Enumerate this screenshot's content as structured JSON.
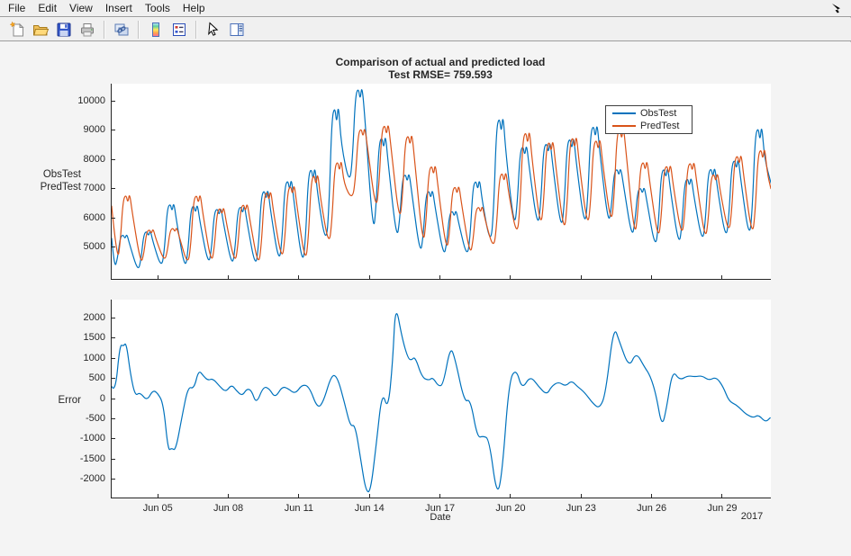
{
  "menubar": {
    "items": [
      "File",
      "Edit",
      "View",
      "Insert",
      "Tools",
      "Help"
    ]
  },
  "toolbar": {
    "icons": [
      "new-figure-icon",
      "open-icon",
      "save-icon",
      "print-icon",
      "link-axes-icon",
      "colorbar-icon",
      "legend-toggle-icon",
      "pointer-icon",
      "plot-browser-icon"
    ]
  },
  "figure": {
    "title": "Comparison of actual and predicted load",
    "subtitle": "Test RMSE= 759.593",
    "xlabel": "Date",
    "year_label": "2017",
    "colors": {
      "axis": "#262626",
      "plot_background": "#ffffff",
      "figure_background": "#f4f4f4",
      "obs_line": "#0072BD",
      "pred_line": "#D95319"
    }
  },
  "chart_data": [
    {
      "type": "line",
      "title": "Comparison of actual and predicted load",
      "subtitle": "Test RMSE= 759.593",
      "ylabel_lines": [
        "ObsTest",
        "PredTest"
      ],
      "legend": [
        "ObsTest",
        "PredTest"
      ],
      "legend_position": "upper-right",
      "x_unit": "days since Jun 03, 2017",
      "xlim": [
        0,
        28.03
      ],
      "ylim": [
        3915,
        10585
      ],
      "y_ticks": [
        5000,
        6000,
        7000,
        8000,
        9000,
        10000
      ],
      "x_ticks": [
        {
          "day": 2,
          "label": "Jun 05"
        },
        {
          "day": 5,
          "label": "Jun 08"
        },
        {
          "day": 8,
          "label": "Jun 11"
        },
        {
          "day": 11,
          "label": "Jun 14"
        },
        {
          "day": 14,
          "label": "Jun 17"
        },
        {
          "day": 17,
          "label": "Jun 20"
        },
        {
          "day": 20,
          "label": "Jun 23"
        },
        {
          "day": 23,
          "label": "Jun 26"
        },
        {
          "day": 26,
          "label": "Jun 29"
        }
      ],
      "series": [
        {
          "name": "ObsTest",
          "color": "#0072BD",
          "start": 5300,
          "end": 7200,
          "trough_time": 0.12,
          "peak_time": 0.62,
          "daily_trough": [
            4250,
            4150,
            4250,
            4200,
            4350,
            4300,
            4250,
            4400,
            4300,
            5000,
            7100,
            5380,
            5220,
            4700,
            4650,
            4600,
            5000,
            5600,
            5600,
            5500,
            5600,
            5750,
            5300,
            4900,
            5000,
            5100,
            5200,
            5200
          ],
          "daily_peak": [
            5470,
            5600,
            6570,
            6520,
            6400,
            6480,
            7050,
            7400,
            7820,
            9970,
            10560,
            8900,
            7590,
            7020,
            6300,
            7380,
            9600,
            8570,
            8680,
            8850,
            9300,
            7750,
            7100,
            7800,
            7450,
            7800,
            8100,
            9240
          ]
        },
        {
          "name": "PredTest",
          "color": "#D95319",
          "start": 6400,
          "end": 7000,
          "trough_time": 0.24,
          "peak_time": 0.74,
          "daily_trough": [
            4450,
            4400,
            4500,
            4350,
            4400,
            4400,
            4300,
            4500,
            4400,
            5000,
            6600,
            6200,
            5800,
            5000,
            4800,
            4700,
            4900,
            5300,
            5600,
            5400,
            5600,
            5700,
            5300,
            5200,
            5300,
            5200,
            5400,
            5300
          ],
          "daily_peak": [
            6880,
            5650,
            5700,
            6880,
            6420,
            6550,
            7000,
            7200,
            7600,
            8050,
            9150,
            9300,
            8950,
            7900,
            7170,
            6450,
            7650,
            9090,
            8730,
            8900,
            8800,
            9200,
            8030,
            7900,
            8000,
            7600,
            8250,
            8470
          ]
        }
      ]
    },
    {
      "type": "line",
      "ylabel": "Error",
      "xlabel": "Date",
      "year_label": "2017",
      "xlim": [
        0,
        28.03
      ],
      "ylim": [
        -2460,
        2460
      ],
      "y_ticks": [
        2000,
        1500,
        1000,
        500,
        0,
        -500,
        -1000,
        -1500,
        -2000
      ],
      "x_ticks": [
        {
          "day": 2,
          "label": "Jun 05"
        },
        {
          "day": 5,
          "label": "Jun 08"
        },
        {
          "day": 8,
          "label": "Jun 11"
        },
        {
          "day": 11,
          "label": "Jun 14"
        },
        {
          "day": 14,
          "label": "Jun 17"
        },
        {
          "day": 17,
          "label": "Jun 20"
        },
        {
          "day": 20,
          "label": "Jun 23"
        },
        {
          "day": 23,
          "label": "Jun 26"
        },
        {
          "day": 26,
          "label": "Jun 29"
        }
      ],
      "series": [
        {
          "name": "Error",
          "color": "#0072BD",
          "points": [
            [
              0,
              300
            ],
            [
              0.15,
              120
            ],
            [
              0.35,
              1350
            ],
            [
              0.5,
              1300
            ],
            [
              0.62,
              1400
            ],
            [
              0.8,
              600
            ],
            [
              1.0,
              60
            ],
            [
              1.2,
              160
            ],
            [
              1.5,
              -60
            ],
            [
              1.75,
              210
            ],
            [
              1.95,
              140
            ],
            [
              2.2,
              -120
            ],
            [
              2.4,
              -1300
            ],
            [
              2.55,
              -1230
            ],
            [
              2.72,
              -1300
            ],
            [
              3.0,
              -420
            ],
            [
              3.25,
              300
            ],
            [
              3.5,
              240
            ],
            [
              3.7,
              714
            ],
            [
              3.9,
              560
            ],
            [
              4.1,
              450
            ],
            [
              4.3,
              500
            ],
            [
              4.6,
              300
            ],
            [
              4.85,
              160
            ],
            [
              5.1,
              350
            ],
            [
              5.3,
              200
            ],
            [
              5.55,
              60
            ],
            [
              5.75,
              250
            ],
            [
              5.95,
              200
            ],
            [
              6.15,
              -140
            ],
            [
              6.45,
              300
            ],
            [
              6.7,
              250
            ],
            [
              6.95,
              10
            ],
            [
              7.25,
              300
            ],
            [
              7.5,
              250
            ],
            [
              7.8,
              110
            ],
            [
              8.1,
              350
            ],
            [
              8.4,
              300
            ],
            [
              8.75,
              -250
            ],
            [
              9.0,
              -90
            ],
            [
              9.35,
              600
            ],
            [
              9.6,
              540
            ],
            [
              9.9,
              -100
            ],
            [
              10.15,
              -700
            ],
            [
              10.35,
              -640
            ],
            [
              10.6,
              -1550
            ],
            [
              10.8,
              -2280
            ],
            [
              11.0,
              -2350
            ],
            [
              11.25,
              -1150
            ],
            [
              11.5,
              200
            ],
            [
              11.75,
              -300
            ],
            [
              11.95,
              900
            ],
            [
              12.07,
              2390
            ],
            [
              12.35,
              1500
            ],
            [
              12.6,
              1000
            ],
            [
              12.75,
              950
            ],
            [
              12.9,
              1050
            ],
            [
              13.2,
              520
            ],
            [
              13.5,
              450
            ],
            [
              13.65,
              530
            ],
            [
              13.9,
              300
            ],
            [
              14.1,
              350
            ],
            [
              14.4,
              1300
            ],
            [
              14.6,
              1000
            ],
            [
              15.0,
              -100
            ],
            [
              15.25,
              0
            ],
            [
              15.55,
              -980
            ],
            [
              15.8,
              -930
            ],
            [
              16.05,
              -1000
            ],
            [
              16.38,
              -2450
            ],
            [
              16.6,
              -1890
            ],
            [
              16.9,
              450
            ],
            [
              17.2,
              750
            ],
            [
              17.45,
              220
            ],
            [
              17.8,
              570
            ],
            [
              18.15,
              300
            ],
            [
              18.5,
              90
            ],
            [
              18.7,
              300
            ],
            [
              19.0,
              420
            ],
            [
              19.3,
              300
            ],
            [
              19.55,
              450
            ],
            [
              19.8,
              300
            ],
            [
              20.1,
              160
            ],
            [
              20.5,
              -150
            ],
            [
              20.75,
              -240
            ],
            [
              21.0,
              100
            ],
            [
              21.35,
              1830
            ],
            [
              21.6,
              1400
            ],
            [
              22.0,
              760
            ],
            [
              22.3,
              1160
            ],
            [
              22.65,
              790
            ],
            [
              22.9,
              570
            ],
            [
              23.15,
              100
            ],
            [
              23.4,
              -730
            ],
            [
              23.6,
              -220
            ],
            [
              23.85,
              714
            ],
            [
              24.15,
              450
            ],
            [
              24.5,
              570
            ],
            [
              24.8,
              540
            ],
            [
              25.1,
              570
            ],
            [
              25.4,
              450
            ],
            [
              25.7,
              540
            ],
            [
              26.0,
              300
            ],
            [
              26.25,
              -70
            ],
            [
              26.55,
              -150
            ],
            [
              26.8,
              -290
            ],
            [
              27.0,
              -400
            ],
            [
              27.3,
              -480
            ],
            [
              27.5,
              -400
            ],
            [
              27.8,
              -590
            ],
            [
              28.0,
              -480
            ]
          ]
        }
      ]
    }
  ]
}
